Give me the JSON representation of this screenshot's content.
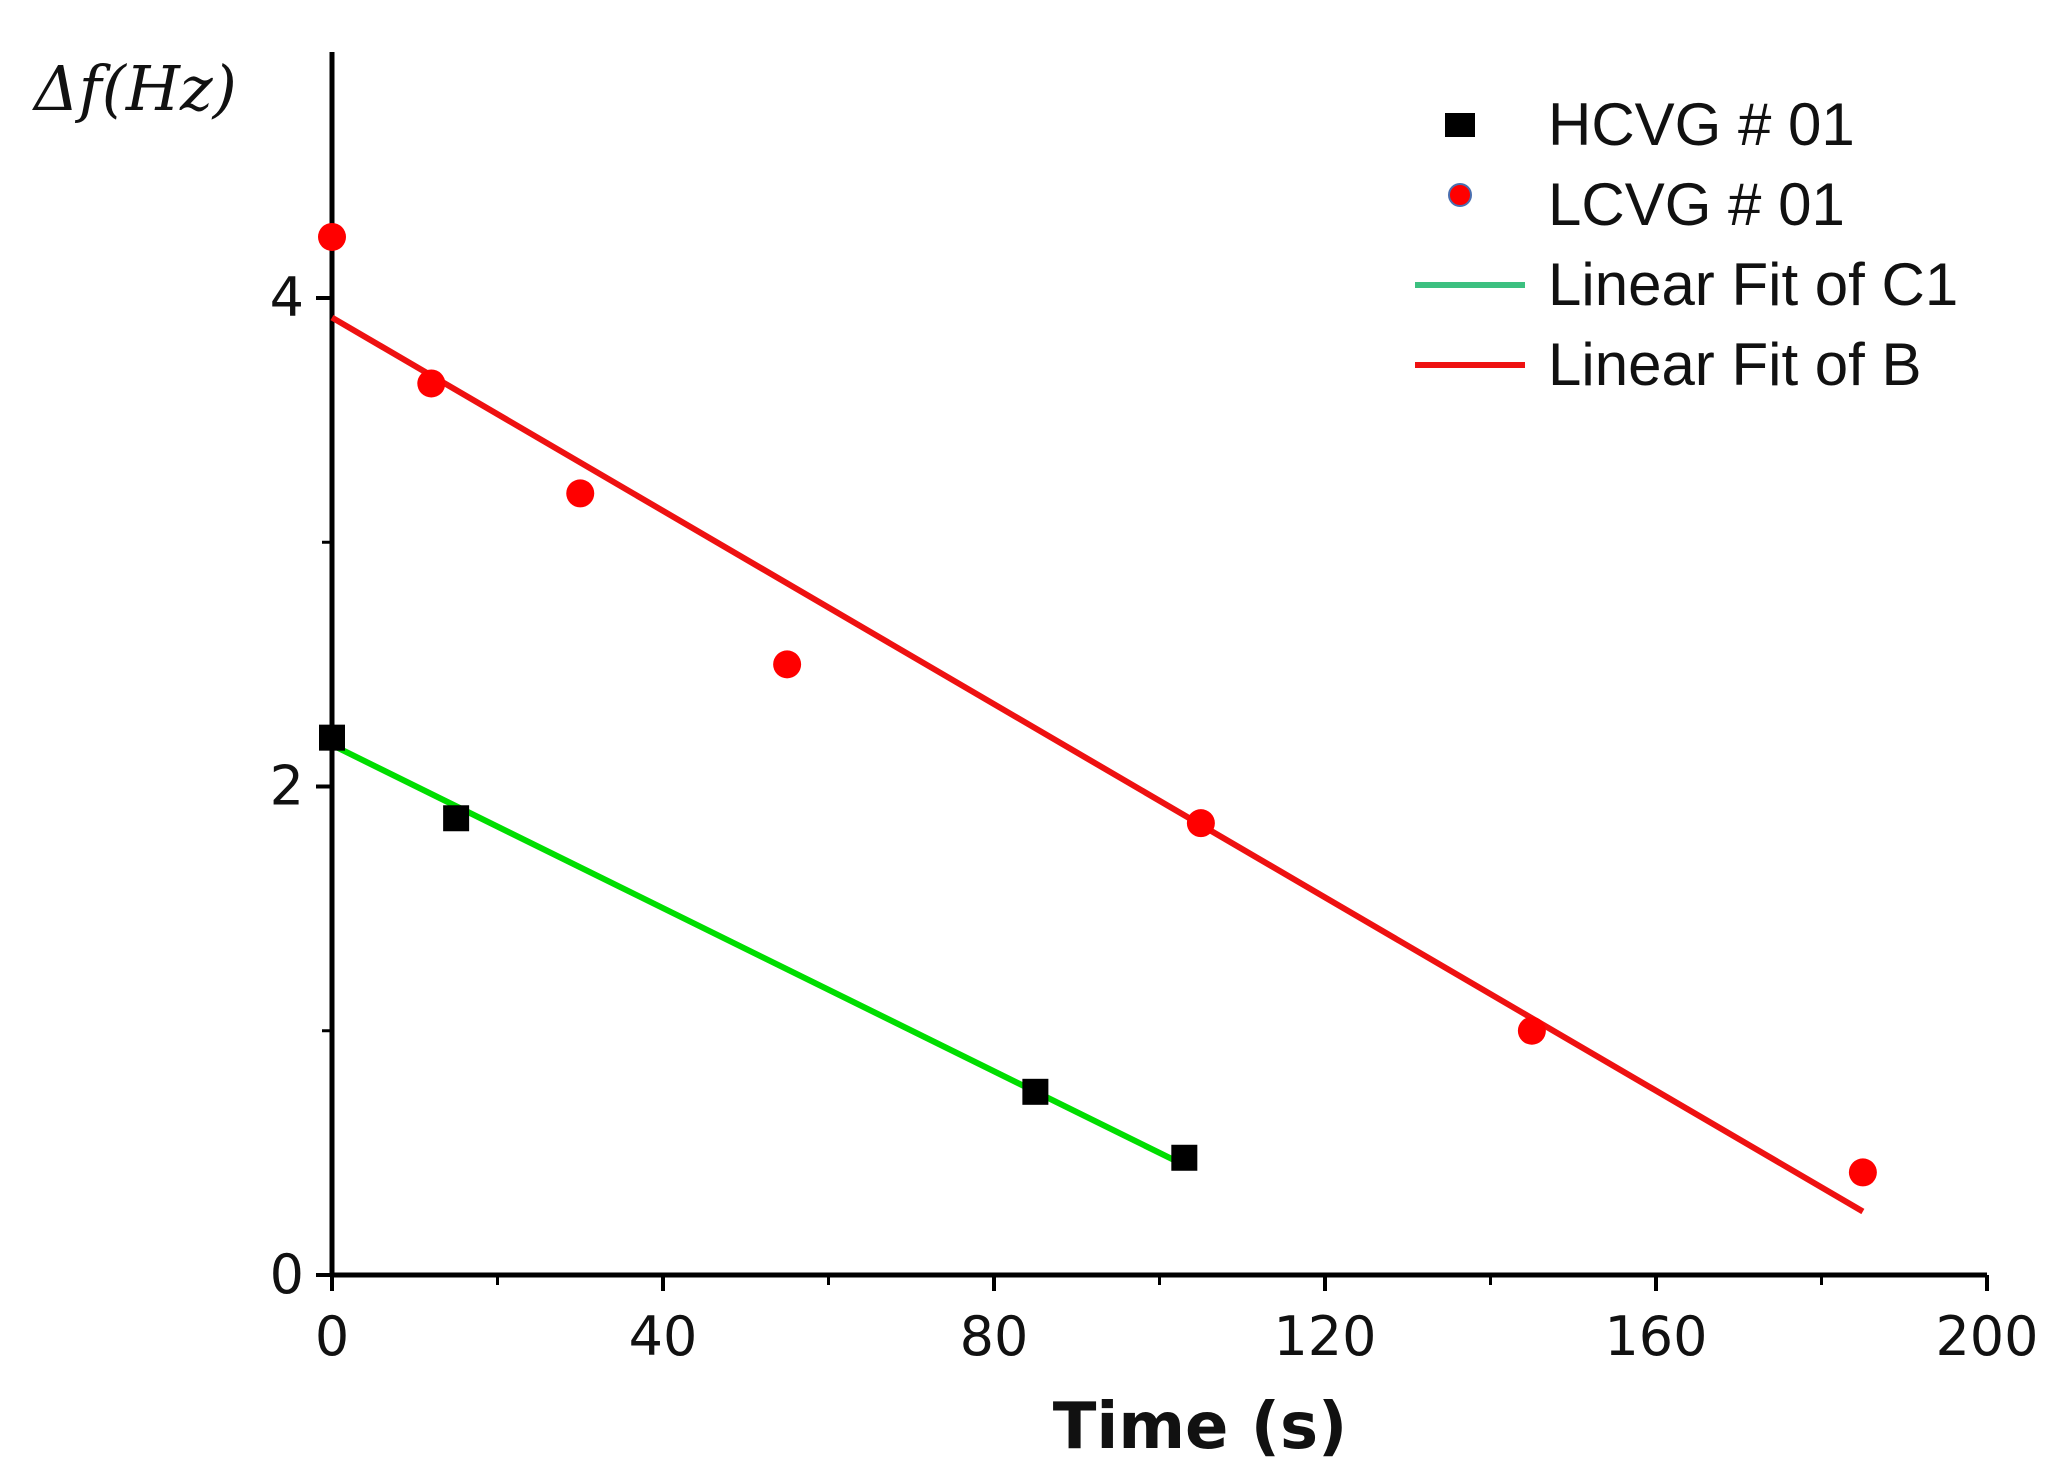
{
  "chart_data": {
    "type": "scatter",
    "title": "",
    "xlabel": "Time (s)",
    "ylabel": "Δf(Hz)",
    "xlim": [
      0,
      200
    ],
    "ylim": [
      0,
      5
    ],
    "x_ticks": [
      0,
      40,
      80,
      120,
      160,
      200
    ],
    "x_tick_labels": [
      "0",
      "40",
      "80",
      "120",
      "160",
      "200"
    ],
    "x_minor_ticks": [
      20,
      60,
      100,
      140,
      180
    ],
    "y_ticks": [
      0,
      2,
      4
    ],
    "y_tick_labels": [
      "0",
      "2",
      "4"
    ],
    "y_minor_ticks": [
      1,
      3
    ],
    "grid": false,
    "legend_position": "top-right",
    "series": [
      {
        "name": "HCVG # 01",
        "kind": "scatter",
        "marker": "square",
        "color": "#000000",
        "x": [
          0,
          15,
          85,
          103
        ],
        "y": [
          2.2,
          1.87,
          0.75,
          0.48
        ]
      },
      {
        "name": "LCVG # 01",
        "kind": "scatter",
        "marker": "circle",
        "color": "#ff0000",
        "x": [
          0,
          12,
          30,
          55,
          105,
          145,
          185
        ],
        "y": [
          4.25,
          3.65,
          3.2,
          2.5,
          1.85,
          1.0,
          0.42
        ]
      },
      {
        "name": "Linear Fit of C1",
        "kind": "line",
        "color": "#00dd00",
        "legend_color": "#3cc080",
        "x": [
          0,
          103
        ],
        "y": [
          2.17,
          0.45
        ]
      },
      {
        "name": "Linear Fit of B",
        "kind": "line",
        "color": "#ee1111",
        "legend_color": "#ee1111",
        "x": [
          0,
          185
        ],
        "y": [
          3.92,
          0.26
        ]
      }
    ]
  }
}
